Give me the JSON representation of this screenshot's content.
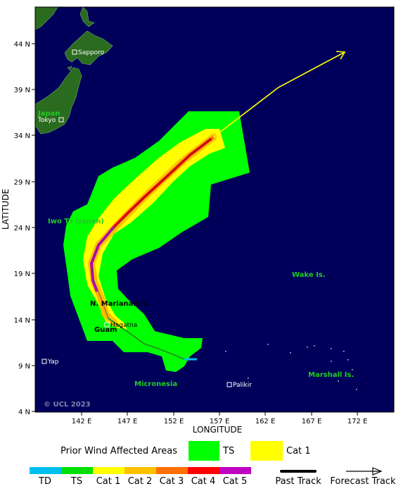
{
  "axes": {
    "x_title": "LONGITUDE",
    "y_title": "LATITUDE",
    "x_ticks": [
      "142 E",
      "147 E",
      "152 E",
      "157 E",
      "162 E",
      "167 E",
      "172 E"
    ],
    "y_ticks": [
      "44 N",
      "39 N",
      "34 N",
      "29 N",
      "24 N",
      "19 N",
      "14 N",
      "9 N",
      "4 N"
    ]
  },
  "places": {
    "sapporo": "Sapporo",
    "tokyo": "Tokyo",
    "hagatna": "Hagatna",
    "yap": "Yap",
    "palikir": "Palikir"
  },
  "regions": {
    "japan": "Japan",
    "iwo_to": "Iwo To (Japan)",
    "n_marianas": "N. Marianas Is.",
    "guam": "Guam",
    "wake": "Wake Is.",
    "micronesia": "Micronesia",
    "marshall": "Marshall Is."
  },
  "copyright": "© UCL 2023",
  "legend": {
    "prior_wind_title": "Prior Wind Affected Areas",
    "ts_label": "TS",
    "cat1_label": "Cat 1",
    "scale": [
      {
        "label": "TD",
        "color": "#00c0f0"
      },
      {
        "label": "TS",
        "color": "#00e000"
      },
      {
        "label": "Cat 1",
        "color": "#ffff00"
      },
      {
        "label": "Cat 2",
        "color": "#ffc000"
      },
      {
        "label": "Cat 3",
        "color": "#ff7000"
      },
      {
        "label": "Cat 4",
        "color": "#ff0000"
      },
      {
        "label": "Cat 5",
        "color": "#c000c0"
      }
    ],
    "past_track": "Past Track",
    "forecast_track": "Forecast Track"
  },
  "colors": {
    "ocean": "#00005a",
    "land": "#2a6b1f",
    "ts_zone": "#00ff00",
    "cat1_zone": "#ffff00",
    "forecast_line": "#ffff00"
  }
}
